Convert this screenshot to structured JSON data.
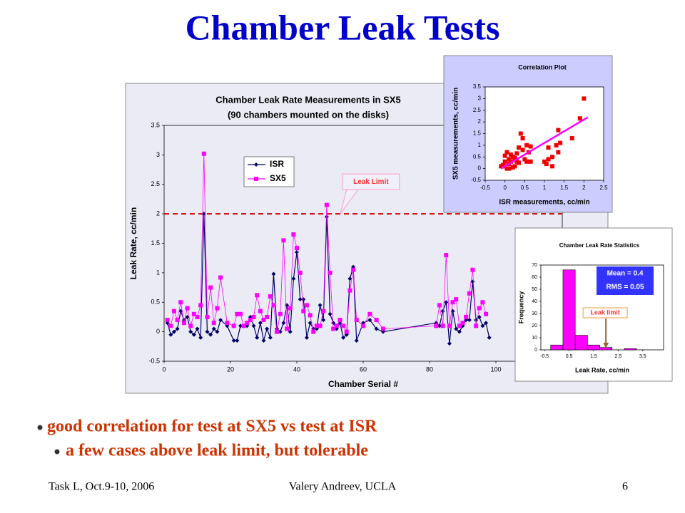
{
  "title": "Chamber Leak Tests",
  "bullets": [
    "good correlation for test at SX5 vs test at ISR",
    "a few cases above leak limit, but tolerable"
  ],
  "footer": {
    "left": "Task L, Oct.9-10, 2006",
    "center": "Valery Andreev, UCLA",
    "right": "6"
  },
  "chart_data": [
    {
      "type": "line",
      "title": "Chamber Leak Rate Measurements in SX5",
      "subtitle": "(90 chambers mounted on the disks)",
      "x_label": "Chamber Serial #",
      "y_label": "Leak Rate, cc/min",
      "x": [
        1,
        2,
        3,
        4,
        5,
        6,
        7,
        8,
        9,
        10,
        11,
        12,
        13,
        14,
        15,
        16,
        17,
        19,
        21,
        22,
        23,
        24,
        25,
        26,
        27,
        28,
        29,
        30,
        31,
        32,
        33,
        34,
        35,
        36,
        37,
        38,
        39,
        40,
        41,
        42,
        43,
        44,
        45,
        46,
        47,
        48,
        49,
        50,
        51,
        52,
        53,
        54,
        55,
        56,
        57,
        58,
        60,
        62,
        64,
        66,
        82,
        83,
        84,
        85,
        86,
        87,
        88,
        89,
        90,
        91,
        92,
        93,
        94,
        95,
        96,
        97,
        98
      ],
      "series": [
        {
          "name": "ISR",
          "color": "#000066",
          "marker": "diamond",
          "values": [
            0.15,
            -0.05,
            0.0,
            0.05,
            0.35,
            0.2,
            0.25,
            0.0,
            -0.05,
            0.05,
            -0.1,
            2.0,
            0.0,
            -0.05,
            0.05,
            0.0,
            0.2,
            0.1,
            -0.15,
            -0.15,
            0.1,
            0.1,
            0.1,
            0.25,
            0.1,
            -0.1,
            0.15,
            -0.15,
            0.05,
            -0.1,
            0.98,
            0.05,
            0.0,
            0.15,
            0.45,
            0.0,
            0.9,
            1.35,
            0.55,
            0.55,
            -0.1,
            0.15,
            0.05,
            0.05,
            0.45,
            0.2,
            1.95,
            0.3,
            0.15,
            0.05,
            0.15,
            -0.1,
            -0.05,
            0.9,
            1.1,
            -0.15,
            0.15,
            0.2,
            0.05,
            0.0,
            0.15,
            0.1,
            0.35,
            0.5,
            -0.2,
            0.35,
            0.05,
            0.0,
            0.1,
            0.2,
            0.2,
            0.85,
            0.2,
            0.25,
            0.1,
            0.15,
            -0.1
          ]
        },
        {
          "name": "SX5",
          "color": "#ff00ff",
          "marker": "square",
          "values": [
            0.2,
            0.1,
            0.35,
            0.2,
            0.5,
            0.15,
            0.4,
            0.1,
            0.3,
            0.25,
            0.45,
            3.02,
            0.25,
            0.75,
            0.15,
            0.4,
            0.92,
            0.15,
            0.1,
            0.3,
            0.3,
            0.1,
            0.15,
            0.2,
            0.25,
            0.62,
            0.35,
            0.2,
            0.25,
            0.6,
            0.45,
            0.0,
            0.3,
            1.55,
            0.05,
            0.4,
            1.65,
            1.42,
            1.0,
            0.35,
            0.45,
            0.28,
            0.0,
            0.1,
            0.1,
            0.35,
            2.15,
            1.0,
            0.05,
            0.1,
            0.2,
            0.1,
            0.0,
            0.7,
            1.05,
            0.2,
            0.1,
            0.3,
            0.2,
            0.05,
            0.1,
            0.45,
            0.1,
            1.3,
            0.1,
            0.5,
            0.55,
            0.1,
            0.15,
            0.25,
            0.65,
            1.05,
            0.1,
            0.4,
            0.5,
            0.3,
            null
          ]
        }
      ],
      "xlim": [
        0,
        120
      ],
      "xticks": [
        0,
        20,
        40,
        60,
        80,
        100
      ],
      "ylim": [
        -0.5,
        3.5
      ],
      "yticks": [
        -0.5,
        0,
        0.5,
        1,
        1.5,
        2,
        2.5,
        3,
        3.5
      ],
      "legend": "upper-left",
      "leak_limit": 2,
      "leak_limit_color": "#cc0000",
      "annotation": "Leak Limit"
    },
    {
      "type": "scatter",
      "title": "Correlation Plot",
      "x_label": "ISR measurements, cc/min",
      "y_label": "SX5 measurements, cc/min",
      "series": [
        {
          "color": "#ee0000",
          "mode": "markers",
          "x": [
            0.0,
            -0.05,
            0.05,
            0.0,
            0.1,
            0.1,
            0.15,
            0.2,
            0.25,
            0.3,
            0.3,
            0.35,
            0.35,
            0.4,
            0.45,
            0.45,
            0.5,
            0.55,
            0.55,
            0.65,
            0.65,
            0.6,
            0.2,
            0.05,
            0.15,
            0.0,
            -0.1,
            1.0,
            1.05,
            1.2,
            1.3,
            1.1,
            1.35,
            1.1,
            1.2,
            1.4,
            1.35,
            1.7,
            1.9,
            2.0,
            0.25,
            0.1
          ],
          "values": [
            0.1,
            0.15,
            0.7,
            0.55,
            0.4,
            0.2,
            0.3,
            0.5,
            0.1,
            0.65,
            0.3,
            0.25,
            0.9,
            1.5,
            1.3,
            0.8,
            0.4,
            1.0,
            0.3,
            0.95,
            0.3,
            0.7,
            0.05,
            0.0,
            0.6,
            0.3,
            0.1,
            0.3,
            0.2,
            0.5,
            1.0,
            0.9,
            0.7,
            0.4,
            0.1,
            1.1,
            1.65,
            1.3,
            2.15,
            3.0,
            0.45,
            0.0
          ]
        },
        {
          "color": "#ff00ff",
          "mode": "line",
          "x": [
            -0.1,
            2.1
          ],
          "values": [
            0.0,
            2.2
          ]
        }
      ],
      "xlim": [
        -0.5,
        2.5
      ],
      "xticks": [
        -0.5,
        0,
        0.5,
        1,
        1.5,
        2,
        2.5
      ],
      "ylim": [
        -0.5,
        3.5
      ],
      "yticks": [
        -0.5,
        0,
        0.5,
        1,
        1.5,
        2,
        2.5,
        3,
        3.5
      ]
    },
    {
      "type": "histogram",
      "title": "Chamber Leak Rate Statistics",
      "x_label": "Leak Rate, cc/min",
      "y_label": "Frequency",
      "bins": [
        -0.25,
        0.25,
        0.75,
        1.25,
        1.75,
        2.25,
        2.75,
        3.25,
        3.75
      ],
      "values": [
        4,
        66,
        12,
        4,
        2,
        0,
        1,
        0
      ],
      "color": "#ff00ff",
      "xlim": [
        -0.65,
        4.35
      ],
      "xticks": [
        -0.5,
        0.5,
        1.5,
        2.5,
        3.5
      ],
      "ylim": [
        0,
        70
      ],
      "yticks": [
        0,
        10,
        20,
        30,
        40,
        50,
        60,
        70
      ],
      "stats": [
        "Mean = 0.4",
        "RMS = 0.05"
      ],
      "leak_limit": 2,
      "annotation": "Leak limit"
    }
  ]
}
